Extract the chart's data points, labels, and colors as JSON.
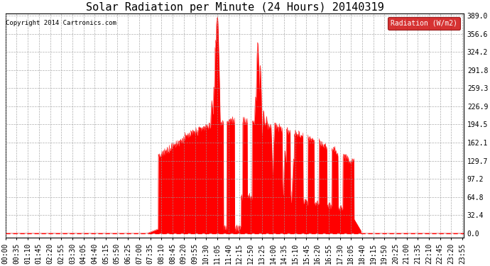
{
  "title": "Solar Radiation per Minute (24 Hours) 20140319",
  "copyright_text": "Copyright 2014 Cartronics.com",
  "legend_label": "Radiation (W/m2)",
  "yticks": [
    0.0,
    32.4,
    64.8,
    97.2,
    129.7,
    162.1,
    194.5,
    226.9,
    259.3,
    291.8,
    324.2,
    356.6,
    389.0
  ],
  "ymax": 389.0,
  "fill_color": "#ff0000",
  "line_color": "#cc0000",
  "dashed_line_color": "#ff0000",
  "background_color": "#ffffff",
  "grid_color": "#999999",
  "legend_bg": "#cc0000",
  "legend_text_color": "#ffffff",
  "title_fontsize": 11,
  "tick_fontsize": 7,
  "xtick_step_minutes": 35
}
